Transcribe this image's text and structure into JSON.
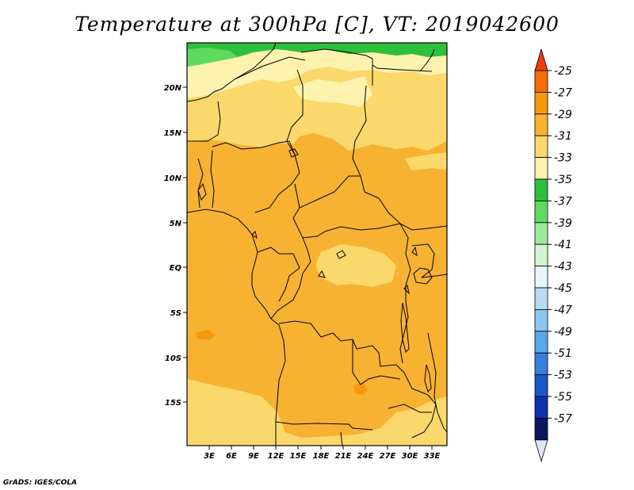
{
  "title": "Temperature at 300hPa [C], VT: 2019042600",
  "credit": "GrADS: IGES/COLA",
  "map": {
    "lat_labels": [
      "20N",
      "15N",
      "10N",
      "5N",
      "EQ",
      "5S",
      "10S",
      "15S"
    ],
    "lon_labels": [
      "3E",
      "6E",
      "9E",
      "12E",
      "15E",
      "18E",
      "21E",
      "24E",
      "27E",
      "30E",
      "33E"
    ]
  },
  "colorbar": {
    "labels": [
      "-25",
      "-27",
      "-29",
      "-31",
      "-33",
      "-35",
      "-37",
      "-39",
      "-41",
      "-43",
      "-45",
      "-47",
      "-49",
      "-51",
      "-53",
      "-55",
      "-57"
    ],
    "colors": [
      "#f03c0c",
      "#f56d06",
      "#f59a0a",
      "#f7b232",
      "#fbd86c",
      "#fdf3ae",
      "#2dc03b",
      "#5fda5e",
      "#9ee99e",
      "#d1f6d1",
      "#e6f4fb",
      "#b7dcf4",
      "#8dc5ef",
      "#5aa7ea",
      "#377fde",
      "#1a58c9",
      "#0d33ad",
      "#09175f",
      "#e0e6f9"
    ]
  },
  "palette": {
    "band_warm": "#f7b232",
    "band_orange": "#f59a0a",
    "band_light": "#fbd86c",
    "band_pale": "#fdf3ae",
    "band_green": "#2dc03b",
    "band_lightgreen": "#5fda5e"
  }
}
